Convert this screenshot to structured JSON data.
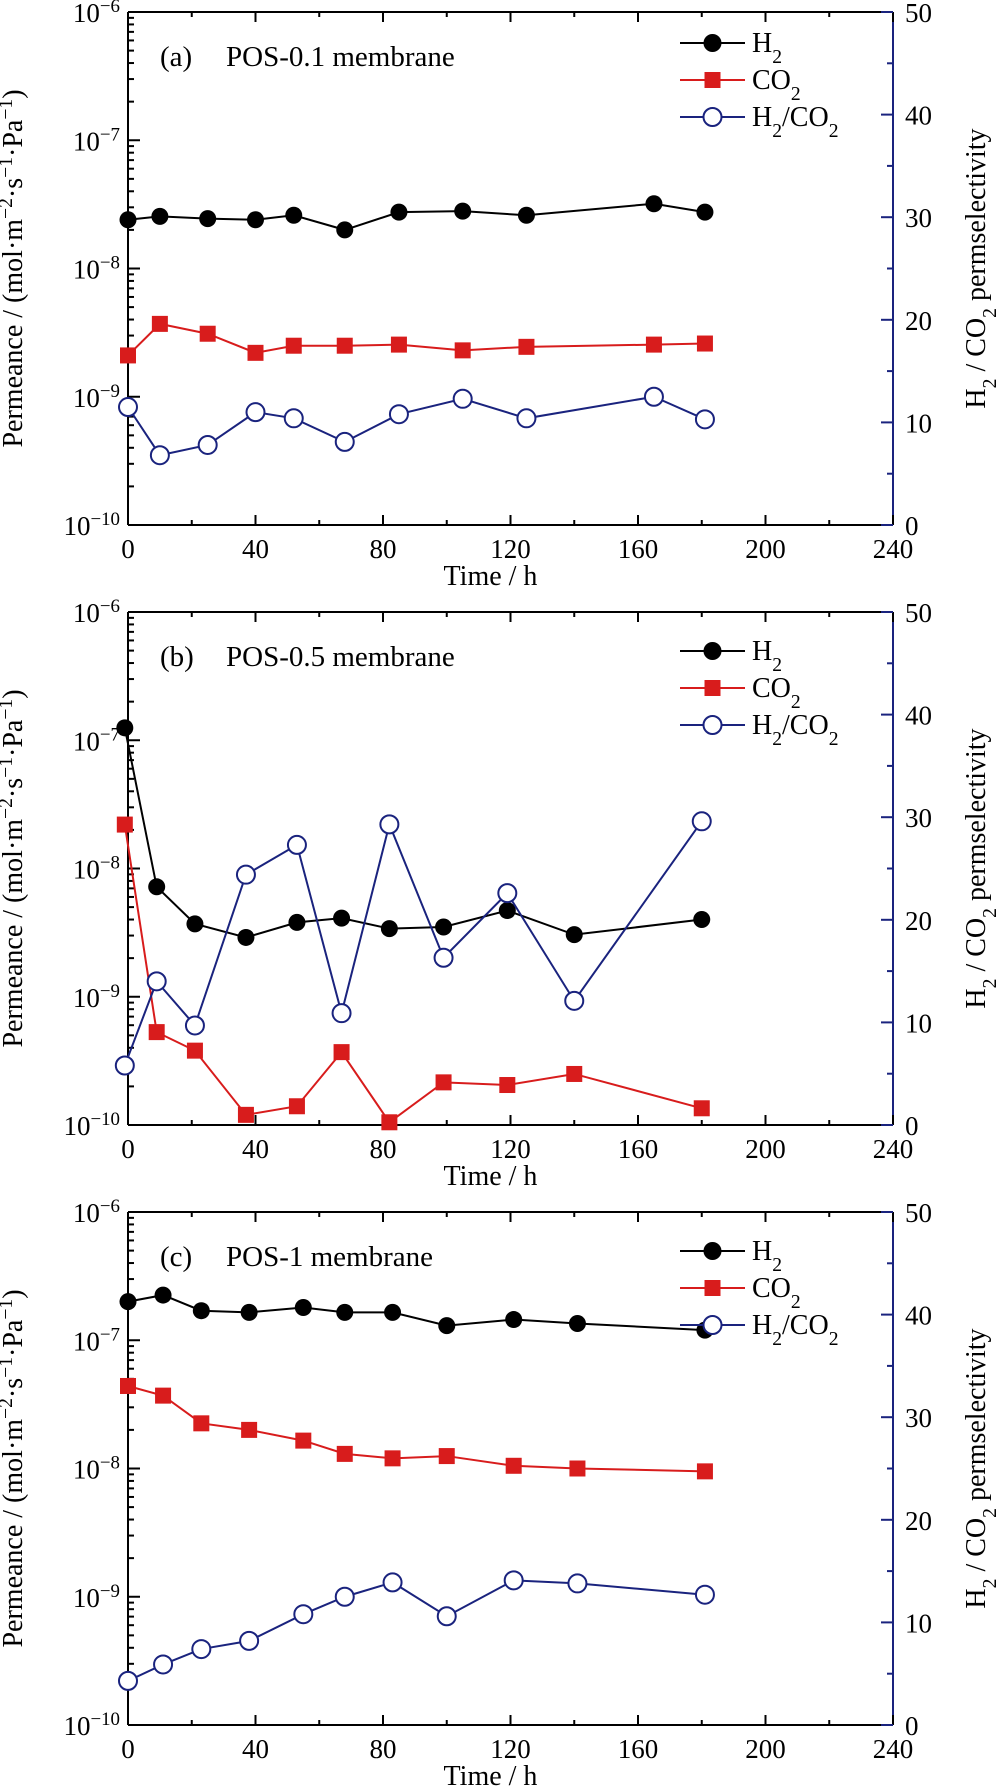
{
  "colors": {
    "h2": "#000000",
    "co2": "#d81c1c",
    "ratio": "#1a237e"
  },
  "legend": [
    {
      "key": "h2",
      "label": "H2",
      "marker": "filled-circle"
    },
    {
      "key": "co2",
      "label": "CO2",
      "marker": "filled-square"
    },
    {
      "key": "ratio",
      "label": "H2/CO2",
      "marker": "open-circle"
    }
  ],
  "chart_data": [
    {
      "type": "line",
      "panel_label": "(a)",
      "title": "POS-0.1 membrane",
      "xlabel": "Time / h",
      "ylabel_left": "Permeance / (mol·m−2·s−1·Pa−1)",
      "ylabel_right": "H2 / CO2 permselectivity",
      "xlim": [
        0,
        240
      ],
      "xticks": [
        0,
        40,
        80,
        120,
        160,
        200,
        240
      ],
      "ylim_left_log": [
        -10,
        -6
      ],
      "yticks_left": [
        "10−10",
        "10−9",
        "10−8",
        "10−7",
        "10−6"
      ],
      "yscale_left": "log",
      "ylim_right": [
        0,
        50
      ],
      "yticks_right": [
        0,
        10,
        20,
        30,
        40,
        50
      ],
      "legend_position": "top-right",
      "series": [
        {
          "key": "h2",
          "axis": "left",
          "x": [
            0,
            10,
            25,
            40,
            52,
            68,
            85,
            105,
            125,
            165,
            181
          ],
          "y": [
            2.4e-08,
            2.55e-08,
            2.45e-08,
            2.4e-08,
            2.6e-08,
            2e-08,
            2.75e-08,
            2.8e-08,
            2.6e-08,
            3.2e-08,
            2.75e-08
          ]
        },
        {
          "key": "co2",
          "axis": "left",
          "x": [
            0,
            10,
            25,
            40,
            52,
            68,
            85,
            105,
            125,
            165,
            181
          ],
          "y": [
            2.1e-09,
            3.7e-09,
            3.1e-09,
            2.2e-09,
            2.5e-09,
            2.5e-09,
            2.55e-09,
            2.3e-09,
            2.45e-09,
            2.55e-09,
            2.6e-09
          ]
        },
        {
          "key": "ratio",
          "axis": "right",
          "x": [
            0,
            10,
            25,
            40,
            52,
            68,
            85,
            105,
            125,
            165,
            181
          ],
          "y": [
            11.5,
            6.8,
            7.8,
            11,
            10.4,
            8.1,
            10.8,
            12.3,
            10.4,
            12.5,
            10.3
          ]
        }
      ]
    },
    {
      "type": "line",
      "panel_label": "(b)",
      "title": "POS-0.5 membrane",
      "xlabel": "Time / h",
      "ylabel_left": "Permeance / (mol·m−2·s−1·Pa−1)",
      "ylabel_right": "H2 / CO2 permselectivity",
      "xlim": [
        0,
        240
      ],
      "xticks": [
        0,
        40,
        80,
        120,
        160,
        200,
        240
      ],
      "ylim_left_log": [
        -10,
        -6
      ],
      "yticks_left": [
        "10−10",
        "10−9",
        "10−8",
        "10−7",
        "10−6"
      ],
      "yscale_left": "log",
      "ylim_right": [
        0,
        50
      ],
      "yticks_right": [
        0,
        10,
        20,
        30,
        40,
        50
      ],
      "legend_position": "top-right",
      "series": [
        {
          "key": "h2",
          "axis": "left",
          "x": [
            -1,
            9,
            21,
            37,
            53,
            67,
            82,
            99,
            119,
            140,
            180
          ],
          "y": [
            1.25e-07,
            7.2e-09,
            3.7e-09,
            2.9e-09,
            3.8e-09,
            4.1e-09,
            3.4e-09,
            3.5e-09,
            4.7e-09,
            3.05e-09,
            4e-09
          ]
        },
        {
          "key": "co2",
          "axis": "left",
          "x": [
            -1,
            9,
            21,
            37,
            53,
            67,
            82,
            99,
            119,
            140,
            180
          ],
          "y": [
            2.2e-08,
            5.3e-10,
            3.8e-10,
            1.2e-10,
            1.4e-10,
            3.7e-10,
            1.05e-10,
            2.15e-10,
            2.05e-10,
            2.5e-10,
            1.35e-10
          ]
        },
        {
          "key": "ratio",
          "axis": "right",
          "x": [
            -1,
            9,
            21,
            37,
            53,
            67,
            82,
            99,
            119,
            140,
            180
          ],
          "y": [
            5.8,
            14,
            9.7,
            24.4,
            27.3,
            10.9,
            29.3,
            16.3,
            22.6,
            12.1,
            29.6
          ]
        }
      ]
    },
    {
      "type": "line",
      "panel_label": "(c)",
      "title": "POS-1 membrane",
      "xlabel": "Time / h",
      "ylabel_left": "Permeance / (mol·m−2·s−1·Pa−1)",
      "ylabel_right": "H2 / CO2 permselectivity",
      "xlim": [
        0,
        240
      ],
      "xticks": [
        0,
        40,
        80,
        120,
        160,
        200,
        240
      ],
      "ylim_left_log": [
        -10,
        -6
      ],
      "yticks_left": [
        "10−10",
        "10−9",
        "10−8",
        "10−7",
        "10−6"
      ],
      "yscale_left": "log",
      "ylim_right": [
        0,
        50
      ],
      "yticks_right": [
        0,
        10,
        20,
        30,
        40,
        50
      ],
      "legend_position": "top-right",
      "series": [
        {
          "key": "h2",
          "axis": "left",
          "x": [
            0,
            11,
            23,
            38,
            55,
            68,
            83,
            100,
            121,
            141,
            181
          ],
          "y": [
            2e-07,
            2.25e-07,
            1.7e-07,
            1.65e-07,
            1.8e-07,
            1.65e-07,
            1.65e-07,
            1.3e-07,
            1.45e-07,
            1.35e-07,
            1.2e-07
          ]
        },
        {
          "key": "co2",
          "axis": "left",
          "x": [
            0,
            11,
            23,
            38,
            55,
            68,
            83,
            100,
            121,
            141,
            181
          ],
          "y": [
            4.4e-08,
            3.7e-08,
            2.25e-08,
            2e-08,
            1.65e-08,
            1.3e-08,
            1.2e-08,
            1.25e-08,
            1.05e-08,
            1e-08,
            9.5e-09
          ]
        },
        {
          "key": "ratio",
          "axis": "right",
          "x": [
            0,
            11,
            23,
            38,
            55,
            68,
            83,
            100,
            121,
            141,
            181
          ],
          "y": [
            4.3,
            5.9,
            7.4,
            8.2,
            10.8,
            12.5,
            13.9,
            10.6,
            14.1,
            13.8,
            12.7
          ]
        }
      ]
    }
  ]
}
